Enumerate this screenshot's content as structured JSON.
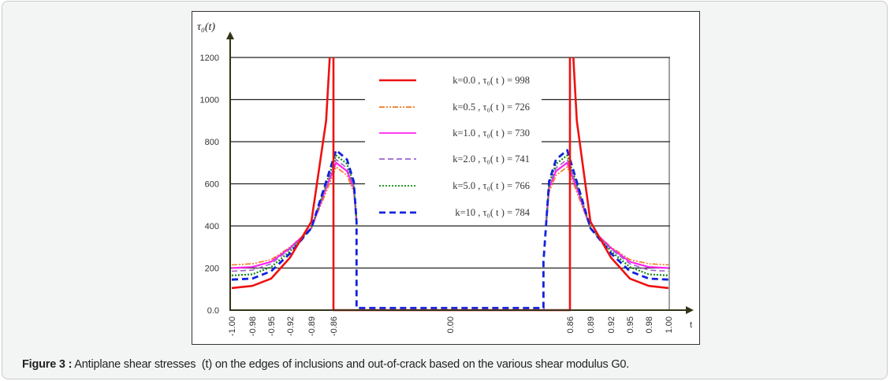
{
  "caption": {
    "label": "Figure 3 :",
    "text": " Antiplane shear stresses  (t) on the edges of inclusions and out-of-crack based on the various shear modulus G0."
  },
  "chart_data": {
    "type": "line",
    "ylabel": "τ₀(t)",
    "xlabel": "t",
    "ylim": [
      0,
      1200
    ],
    "yticks": [
      0,
      200,
      400,
      600,
      800,
      1000,
      1200
    ],
    "ytick_labels": [
      "0.0",
      "200",
      "400",
      "600",
      "800",
      "1000",
      "1200"
    ],
    "xticks": [
      -1.0,
      -0.98,
      -0.95,
      -0.92,
      -0.89,
      -0.86,
      0.0,
      0.86,
      0.89,
      0.92,
      0.95,
      0.98,
      1.0
    ],
    "xtick_labels": [
      "-1.00",
      "-0.98",
      "-0.95",
      "-0.92",
      "-0.89",
      "-0.86",
      "0.00",
      "0.86",
      "0.89",
      "0.92",
      "0.95",
      "0.98",
      "1.00"
    ],
    "grid": "horizontal",
    "legend_position": "top-center",
    "series": [
      {
        "name": "k=0.0 , τ₀( t ) = 998",
        "color": "#ee1111",
        "style": "solid",
        "points": [
          [
            -1,
            105
          ],
          [
            -0.98,
            115
          ],
          [
            -0.95,
            150
          ],
          [
            -0.92,
            250
          ],
          [
            -0.89,
            420
          ],
          [
            -0.87,
            900
          ],
          [
            -0.865,
            1200
          ],
          null,
          [
            -0.86,
            1200
          ],
          [
            -0.86,
            0
          ],
          [
            0.86,
            0
          ],
          [
            0.86,
            1200
          ],
          null,
          [
            0.865,
            1200
          ],
          [
            0.87,
            900
          ],
          [
            0.89,
            420
          ],
          [
            0.92,
            250
          ],
          [
            0.95,
            150
          ],
          [
            0.98,
            115
          ],
          [
            1,
            105
          ]
        ]
      },
      {
        "name": "k=0.5 , τ₀( t ) = 726",
        "color": "#f07820",
        "style": "dashdotdot",
        "points": [
          [
            -1,
            215
          ],
          [
            -0.98,
            220
          ],
          [
            -0.95,
            240
          ],
          [
            -0.92,
            300
          ],
          [
            -0.89,
            390
          ],
          [
            -0.87,
            560
          ],
          [
            -0.84,
            680
          ],
          [
            -0.76,
            640
          ],
          [
            -0.71,
            560
          ],
          [
            -0.69,
            420
          ],
          null,
          [
            0.69,
            420
          ],
          [
            0.71,
            560
          ],
          [
            0.76,
            640
          ],
          [
            0.84,
            680
          ],
          [
            0.87,
            560
          ],
          [
            0.89,
            390
          ],
          [
            0.92,
            300
          ],
          [
            0.95,
            240
          ],
          [
            0.98,
            220
          ],
          [
            1,
            215
          ]
        ]
      },
      {
        "name": "k=1.0 , τ₀( t ) = 730",
        "color": "#ff22ee",
        "style": "solid",
        "points": [
          [
            -1,
            200
          ],
          [
            -0.98,
            205
          ],
          [
            -0.95,
            230
          ],
          [
            -0.92,
            295
          ],
          [
            -0.89,
            390
          ],
          [
            -0.87,
            580
          ],
          [
            -0.84,
            700
          ],
          [
            -0.76,
            660
          ],
          [
            -0.71,
            580
          ],
          [
            -0.69,
            420
          ],
          null,
          [
            0.69,
            420
          ],
          [
            0.71,
            580
          ],
          [
            0.76,
            660
          ],
          [
            0.84,
            700
          ],
          [
            0.87,
            580
          ],
          [
            0.89,
            390
          ],
          [
            0.92,
            295
          ],
          [
            0.95,
            230
          ],
          [
            0.98,
            205
          ],
          [
            1,
            200
          ]
        ]
      },
      {
        "name": "k=2.0 , τ₀( t ) = 741",
        "color": "#9966cc",
        "style": "dash",
        "points": [
          [
            -1,
            185
          ],
          [
            -0.98,
            190
          ],
          [
            -0.95,
            220
          ],
          [
            -0.92,
            290
          ],
          [
            -0.89,
            390
          ],
          [
            -0.87,
            590
          ],
          [
            -0.84,
            715
          ],
          [
            -0.76,
            675
          ],
          [
            -0.71,
            590
          ],
          [
            -0.69,
            420
          ],
          null,
          [
            0.69,
            420
          ],
          [
            0.71,
            590
          ],
          [
            0.76,
            675
          ],
          [
            0.84,
            715
          ],
          [
            0.87,
            590
          ],
          [
            0.89,
            390
          ],
          [
            0.92,
            290
          ],
          [
            0.95,
            220
          ],
          [
            0.98,
            190
          ],
          [
            1,
            185
          ]
        ]
      },
      {
        "name": "k=5.0 , τ₀( t ) = 766",
        "color": "#118811",
        "style": "dot",
        "points": [
          [
            -1,
            165
          ],
          [
            -0.98,
            170
          ],
          [
            -0.95,
            205
          ],
          [
            -0.92,
            280
          ],
          [
            -0.89,
            390
          ],
          [
            -0.87,
            600
          ],
          [
            -0.84,
            735
          ],
          [
            -0.76,
            695
          ],
          [
            -0.71,
            600
          ],
          [
            -0.69,
            420
          ],
          null,
          [
            0.69,
            420
          ],
          [
            0.71,
            600
          ],
          [
            0.76,
            695
          ],
          [
            0.84,
            735
          ],
          [
            0.87,
            600
          ],
          [
            0.89,
            390
          ],
          [
            0.92,
            280
          ],
          [
            0.95,
            205
          ],
          [
            0.98,
            170
          ],
          [
            1,
            165
          ]
        ]
      },
      {
        "name": "k=10 , τ₀( t ) = 784",
        "color": "#1122dd",
        "style": "bigdash",
        "points": [
          [
            -1,
            145
          ],
          [
            -0.98,
            150
          ],
          [
            -0.95,
            185
          ],
          [
            -0.92,
            270
          ],
          [
            -0.89,
            390
          ],
          [
            -0.87,
            610
          ],
          [
            -0.84,
            760
          ],
          [
            -0.76,
            715
          ],
          [
            -0.71,
            610
          ],
          [
            -0.69,
            420
          ],
          [
            -0.69,
            10
          ],
          [
            0.67,
            10
          ],
          [
            0.67,
            230
          ],
          [
            0.69,
            420
          ],
          [
            0.71,
            610
          ],
          [
            0.76,
            715
          ],
          [
            0.84,
            760
          ],
          [
            0.87,
            610
          ],
          [
            0.89,
            390
          ],
          [
            0.92,
            270
          ],
          [
            0.95,
            185
          ],
          [
            0.98,
            150
          ],
          [
            1,
            145
          ]
        ]
      }
    ]
  }
}
